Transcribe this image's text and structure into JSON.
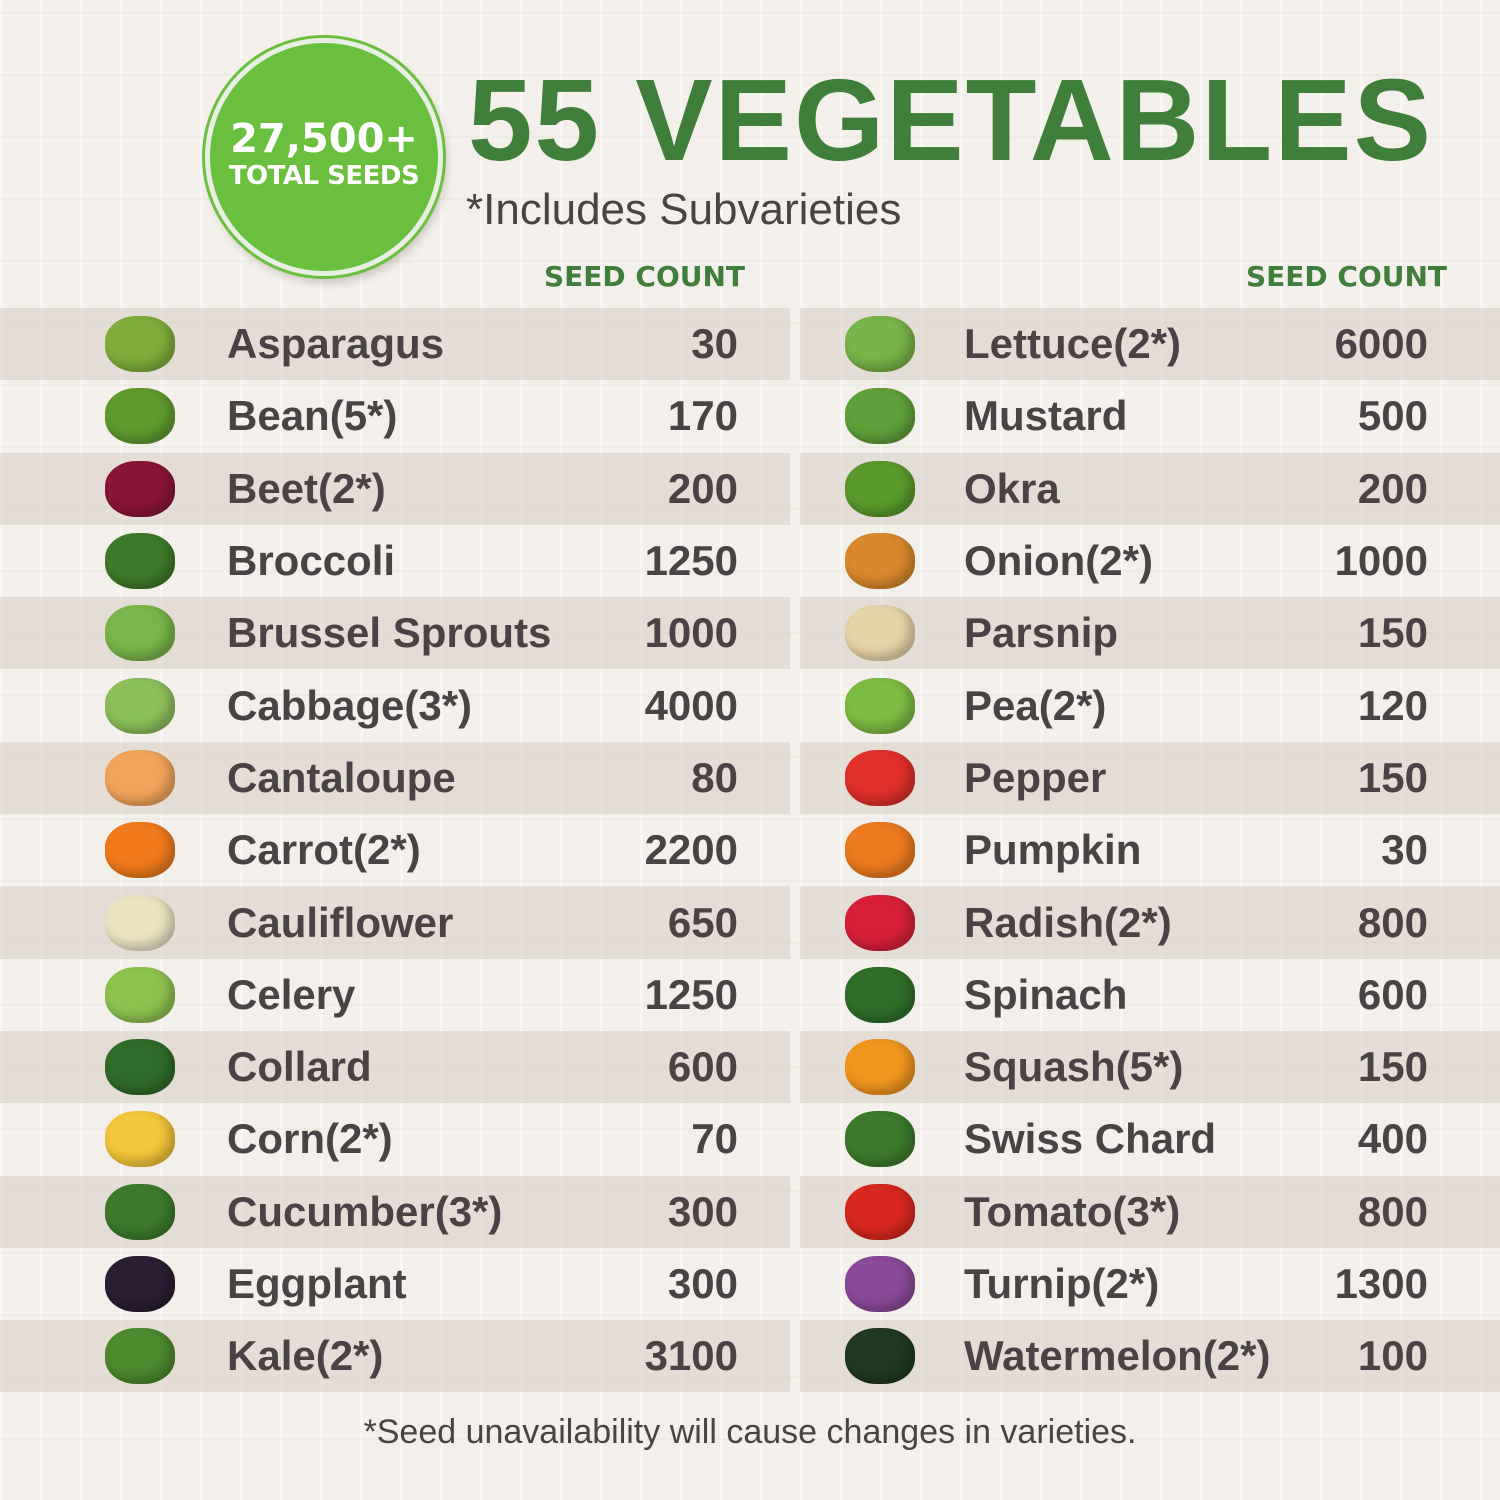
{
  "badge": {
    "count": "27,500+",
    "label": "TOTAL SEEDS"
  },
  "title": "55 VEGETABLES",
  "subtitle": "*Includes Subvarieties",
  "column_header": "SEED COUNT",
  "colors": {
    "title_green": "#3f7e3b",
    "badge_green": "#6abf3f",
    "text": "#4a4244"
  },
  "left": [
    {
      "name": "Asparagus",
      "count": "30",
      "icon": "asparagus",
      "color": "#7fae3c"
    },
    {
      "name": "Bean(5*)",
      "count": "170",
      "icon": "bean",
      "color": "#5f9a2e"
    },
    {
      "name": "Beet(2*)",
      "count": "200",
      "icon": "beet",
      "color": "#8a1538"
    },
    {
      "name": "Broccoli",
      "count": "1250",
      "icon": "broccoli",
      "color": "#3f7a2a"
    },
    {
      "name": "Brussel Sprouts",
      "count": "1000",
      "icon": "brussel-sprouts",
      "color": "#79b54a"
    },
    {
      "name": "Cabbage(3*)",
      "count": "4000",
      "icon": "cabbage",
      "color": "#8cbf5a"
    },
    {
      "name": "Cantaloupe",
      "count": "80",
      "icon": "cantaloupe",
      "color": "#f2a45c"
    },
    {
      "name": "Carrot(2*)",
      "count": "2200",
      "icon": "carrot",
      "color": "#f07a1c"
    },
    {
      "name": "Cauliflower",
      "count": "650",
      "icon": "cauliflower",
      "color": "#ece3c3"
    },
    {
      "name": "Celery",
      "count": "1250",
      "icon": "celery",
      "color": "#8ec24f"
    },
    {
      "name": "Collard",
      "count": "600",
      "icon": "collard",
      "color": "#2f6b2a"
    },
    {
      "name": "Corn(2*)",
      "count": "70",
      "icon": "corn",
      "color": "#f2c53a"
    },
    {
      "name": "Cucumber(3*)",
      "count": "300",
      "icon": "cucumber",
      "color": "#3d7a2c"
    },
    {
      "name": "Eggplant",
      "count": "300",
      "icon": "eggplant",
      "color": "#2b1d33"
    },
    {
      "name": "Kale(2*)",
      "count": "3100",
      "icon": "kale",
      "color": "#4d8a2e"
    }
  ],
  "right": [
    {
      "name": "Lettuce(2*)",
      "count": "6000",
      "icon": "lettuce",
      "color": "#78b44a"
    },
    {
      "name": "Mustard",
      "count": "500",
      "icon": "mustard",
      "color": "#5fa03a"
    },
    {
      "name": "Okra",
      "count": "200",
      "icon": "okra",
      "color": "#5a9a2c"
    },
    {
      "name": "Onion(2*)",
      "count": "1000",
      "icon": "onion",
      "color": "#d9892c"
    },
    {
      "name": "Parsnip",
      "count": "150",
      "icon": "parsnip",
      "color": "#e6d3a8"
    },
    {
      "name": "Pea(2*)",
      "count": "120",
      "icon": "pea",
      "color": "#7dbb43"
    },
    {
      "name": "Pepper",
      "count": "150",
      "icon": "pepper",
      "color": "#e0302a"
    },
    {
      "name": "Pumpkin",
      "count": "30",
      "icon": "pumpkin",
      "color": "#ec7a1f"
    },
    {
      "name": "Radish(2*)",
      "count": "800",
      "icon": "radish",
      "color": "#d81f3a"
    },
    {
      "name": "Spinach",
      "count": "600",
      "icon": "spinach",
      "color": "#2f6e2a"
    },
    {
      "name": "Squash(5*)",
      "count": "150",
      "icon": "squash",
      "color": "#f0951e"
    },
    {
      "name": "Swiss Chard",
      "count": "400",
      "icon": "swiss-chard",
      "color": "#3d7a2c"
    },
    {
      "name": "Tomato(3*)",
      "count": "800",
      "icon": "tomato",
      "color": "#d8281e"
    },
    {
      "name": "Turnip(2*)",
      "count": "1300",
      "icon": "turnip",
      "color": "#8c4a9a"
    },
    {
      "name": "Watermelon(2*)",
      "count": "100",
      "icon": "watermelon",
      "color": "#1f3a1f"
    }
  ],
  "footnote": "*Seed unavailability will cause changes in varieties."
}
